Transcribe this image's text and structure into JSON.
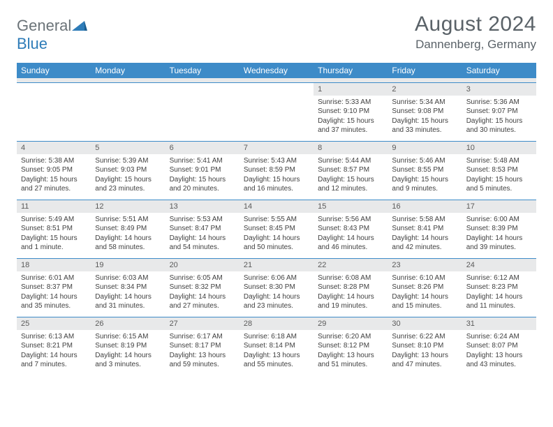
{
  "brand": {
    "part1": "General",
    "part2": "Blue"
  },
  "title": "August 2024",
  "location": "Dannenberg, Germany",
  "colors": {
    "headerBg": "#3d8bc8",
    "headerText": "#ffffff",
    "dayNumBg": "#e8e9ea",
    "textBody": "#404040",
    "titleText": "#5a6268",
    "logoGray": "#6b7378",
    "logoBlue": "#2e7cb8"
  },
  "dayNames": [
    "Sunday",
    "Monday",
    "Tuesday",
    "Wednesday",
    "Thursday",
    "Friday",
    "Saturday"
  ],
  "weeks": [
    [
      null,
      null,
      null,
      null,
      {
        "n": "1",
        "sr": "5:33 AM",
        "ss": "9:10 PM",
        "dl": "15 hours and 37 minutes."
      },
      {
        "n": "2",
        "sr": "5:34 AM",
        "ss": "9:08 PM",
        "dl": "15 hours and 33 minutes."
      },
      {
        "n": "3",
        "sr": "5:36 AM",
        "ss": "9:07 PM",
        "dl": "15 hours and 30 minutes."
      }
    ],
    [
      {
        "n": "4",
        "sr": "5:38 AM",
        "ss": "9:05 PM",
        "dl": "15 hours and 27 minutes."
      },
      {
        "n": "5",
        "sr": "5:39 AM",
        "ss": "9:03 PM",
        "dl": "15 hours and 23 minutes."
      },
      {
        "n": "6",
        "sr": "5:41 AM",
        "ss": "9:01 PM",
        "dl": "15 hours and 20 minutes."
      },
      {
        "n": "7",
        "sr": "5:43 AM",
        "ss": "8:59 PM",
        "dl": "15 hours and 16 minutes."
      },
      {
        "n": "8",
        "sr": "5:44 AM",
        "ss": "8:57 PM",
        "dl": "15 hours and 12 minutes."
      },
      {
        "n": "9",
        "sr": "5:46 AM",
        "ss": "8:55 PM",
        "dl": "15 hours and 9 minutes."
      },
      {
        "n": "10",
        "sr": "5:48 AM",
        "ss": "8:53 PM",
        "dl": "15 hours and 5 minutes."
      }
    ],
    [
      {
        "n": "11",
        "sr": "5:49 AM",
        "ss": "8:51 PM",
        "dl": "15 hours and 1 minute."
      },
      {
        "n": "12",
        "sr": "5:51 AM",
        "ss": "8:49 PM",
        "dl": "14 hours and 58 minutes."
      },
      {
        "n": "13",
        "sr": "5:53 AM",
        "ss": "8:47 PM",
        "dl": "14 hours and 54 minutes."
      },
      {
        "n": "14",
        "sr": "5:55 AM",
        "ss": "8:45 PM",
        "dl": "14 hours and 50 minutes."
      },
      {
        "n": "15",
        "sr": "5:56 AM",
        "ss": "8:43 PM",
        "dl": "14 hours and 46 minutes."
      },
      {
        "n": "16",
        "sr": "5:58 AM",
        "ss": "8:41 PM",
        "dl": "14 hours and 42 minutes."
      },
      {
        "n": "17",
        "sr": "6:00 AM",
        "ss": "8:39 PM",
        "dl": "14 hours and 39 minutes."
      }
    ],
    [
      {
        "n": "18",
        "sr": "6:01 AM",
        "ss": "8:37 PM",
        "dl": "14 hours and 35 minutes."
      },
      {
        "n": "19",
        "sr": "6:03 AM",
        "ss": "8:34 PM",
        "dl": "14 hours and 31 minutes."
      },
      {
        "n": "20",
        "sr": "6:05 AM",
        "ss": "8:32 PM",
        "dl": "14 hours and 27 minutes."
      },
      {
        "n": "21",
        "sr": "6:06 AM",
        "ss": "8:30 PM",
        "dl": "14 hours and 23 minutes."
      },
      {
        "n": "22",
        "sr": "6:08 AM",
        "ss": "8:28 PM",
        "dl": "14 hours and 19 minutes."
      },
      {
        "n": "23",
        "sr": "6:10 AM",
        "ss": "8:26 PM",
        "dl": "14 hours and 15 minutes."
      },
      {
        "n": "24",
        "sr": "6:12 AM",
        "ss": "8:23 PM",
        "dl": "14 hours and 11 minutes."
      }
    ],
    [
      {
        "n": "25",
        "sr": "6:13 AM",
        "ss": "8:21 PM",
        "dl": "14 hours and 7 minutes."
      },
      {
        "n": "26",
        "sr": "6:15 AM",
        "ss": "8:19 PM",
        "dl": "14 hours and 3 minutes."
      },
      {
        "n": "27",
        "sr": "6:17 AM",
        "ss": "8:17 PM",
        "dl": "13 hours and 59 minutes."
      },
      {
        "n": "28",
        "sr": "6:18 AM",
        "ss": "8:14 PM",
        "dl": "13 hours and 55 minutes."
      },
      {
        "n": "29",
        "sr": "6:20 AM",
        "ss": "8:12 PM",
        "dl": "13 hours and 51 minutes."
      },
      {
        "n": "30",
        "sr": "6:22 AM",
        "ss": "8:10 PM",
        "dl": "13 hours and 47 minutes."
      },
      {
        "n": "31",
        "sr": "6:24 AM",
        "ss": "8:07 PM",
        "dl": "13 hours and 43 minutes."
      }
    ]
  ],
  "labels": {
    "sunrise": "Sunrise:",
    "sunset": "Sunset:",
    "daylight": "Daylight:"
  }
}
